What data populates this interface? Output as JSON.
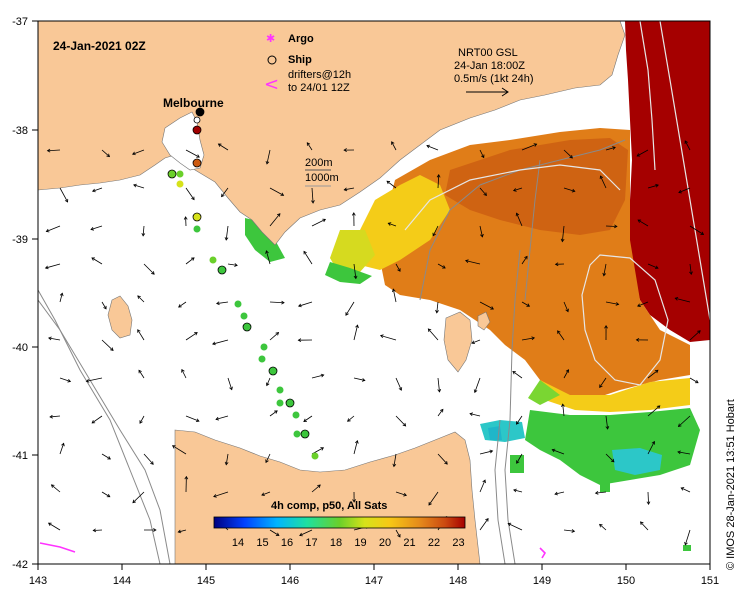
{
  "map": {
    "title": "24-Jan-2021 02Z",
    "place_label": "Melbourne",
    "legend": {
      "argo": "Argo",
      "ship": "Ship",
      "drifters_line1": "drifters@12h",
      "drifters_line2": "to 24/01 12Z"
    },
    "current_info": {
      "line1": "NRT00 GSL",
      "line2": "24-Jan 18:00Z",
      "line3": "0.5m/s (1kt 24h)"
    },
    "isobaths": {
      "line1": "200m",
      "line2": "1000m"
    },
    "colorbar": {
      "title": "4h comp, p50, All Sats",
      "ticks": [
        "14",
        "15",
        "16",
        "17",
        "18",
        "19",
        "20",
        "21",
        "22",
        "23"
      ]
    },
    "axes": {
      "x_ticks": [
        "143",
        "144",
        "145",
        "146",
        "147",
        "148",
        "149",
        "150",
        "151"
      ],
      "y_ticks": [
        "-37",
        "-38",
        "-39",
        "-40",
        "-41",
        "-42"
      ]
    },
    "credit": "© IMOS 28-Jan-2021 13:51 Hobart",
    "colors": {
      "land": "#f9c897",
      "sst_warm": "#a50000",
      "sst_orange": "#e58a1b",
      "sst_yellow": "#f7d316",
      "sst_green": "#35c435",
      "sst_cyan": "#2cc7c8",
      "drifter": "#ff33ff"
    }
  }
}
